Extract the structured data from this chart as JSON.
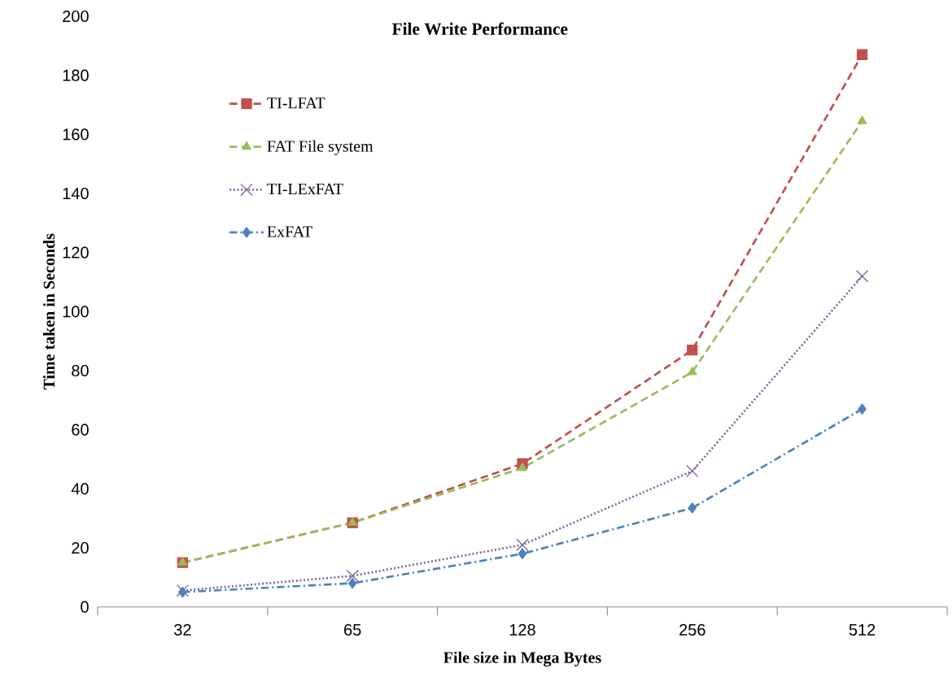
{
  "chart_data": {
    "type": "line",
    "title": "File Write Performance",
    "xlabel": "File size in Mega Bytes",
    "ylabel": "Time taken in Seconds",
    "categories": [
      "32",
      "65",
      "128",
      "256",
      "512"
    ],
    "ylim": [
      0,
      200
    ],
    "yticks": [
      0,
      20,
      40,
      60,
      80,
      100,
      120,
      140,
      160,
      180,
      200
    ],
    "grid": false,
    "legend": "top left",
    "series": [
      {
        "name": "TI-LFAT",
        "color": "#c0504d",
        "marker": "square",
        "line_style": "dashed",
        "values": [
          15,
          28.5,
          48.5,
          87,
          187
        ]
      },
      {
        "name": "FAT File system",
        "color": "#9bbb59",
        "marker": "triangle",
        "line_style": "dashed",
        "values": [
          15,
          28.5,
          47,
          79.5,
          164.5
        ]
      },
      {
        "name": "TI-LExFAT",
        "color": "#8064a2",
        "marker": "cross",
        "line_style": "dotted",
        "values": [
          5.5,
          10.5,
          21,
          46,
          112
        ]
      },
      {
        "name": "ExFAT",
        "color": "#4f81bd",
        "marker": "diamond",
        "line_style": "dashdot",
        "values": [
          5,
          8,
          18,
          33.5,
          67
        ]
      }
    ]
  }
}
